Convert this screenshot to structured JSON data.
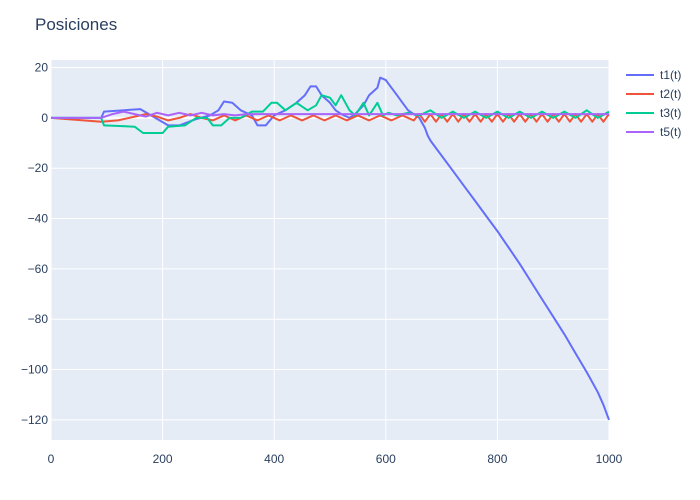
{
  "chart_data": {
    "type": "line",
    "title": "Posiciones",
    "xlabel": "",
    "ylabel": "",
    "xlim": [
      0,
      1000
    ],
    "ylim": [
      -128,
      23
    ],
    "x_ticks": [
      0,
      200,
      400,
      600,
      800,
      1000
    ],
    "x_tick_labels": [
      "0",
      "200",
      "400",
      "600",
      "800",
      "1000"
    ],
    "y_ticks": [
      20,
      0,
      -20,
      -40,
      -60,
      -80,
      -100,
      -120
    ],
    "y_tick_labels": [
      "20",
      "0",
      "−20",
      "−40",
      "−60",
      "−80",
      "−100",
      "−120"
    ],
    "grid": true,
    "legend_position": "top-right",
    "colors": {
      "plot_bg": "#e5ecf6",
      "grid": "#ffffff",
      "text": "#2a3f5f"
    },
    "series": [
      {
        "name": "t1(t)",
        "color": "#636efa",
        "x": [
          0,
          90,
          95,
          160,
          210,
          230,
          260,
          285,
          300,
          310,
          325,
          340,
          360,
          370,
          385,
          400,
          420,
          440,
          455,
          465,
          475,
          485,
          500,
          510,
          520,
          535,
          545,
          560,
          570,
          585,
          590,
          600,
          610,
          620,
          630,
          640,
          650,
          660,
          670,
          675,
          680,
          690,
          700,
          720,
          740,
          760,
          780,
          800,
          820,
          840,
          860,
          880,
          900,
          920,
          940,
          960,
          980,
          990,
          1000
        ],
        "y": [
          0,
          0,
          2.5,
          3.5,
          -3,
          -3,
          -0.5,
          1,
          3,
          6.5,
          6,
          3,
          1,
          -3,
          -3,
          1,
          3,
          6,
          9,
          12.5,
          12.5,
          9,
          6,
          3,
          1.5,
          0,
          1.5,
          5,
          9,
          12,
          16,
          15,
          12,
          9,
          6,
          3,
          1.5,
          0,
          -4,
          -7,
          -9,
          -12,
          -15,
          -21,
          -27,
          -33,
          -39,
          -45,
          -51.5,
          -58,
          -65,
          -72,
          -79,
          -86,
          -93.5,
          -101,
          -109,
          -114,
          -120
        ]
      },
      {
        "name": "t2(t)",
        "color": "#ef553b",
        "x": [
          0,
          90,
          120,
          150,
          170,
          190,
          210,
          230,
          250,
          270,
          290,
          310,
          330,
          350,
          370,
          390,
          410,
          430,
          450,
          470,
          490,
          510,
          530,
          550,
          570,
          590,
          610,
          630,
          650,
          660,
          670,
          680,
          690,
          700,
          710,
          720,
          730,
          740,
          750,
          760,
          770,
          780,
          790,
          800,
          810,
          820,
          830,
          840,
          850,
          860,
          870,
          880,
          890,
          900,
          910,
          920,
          930,
          940,
          950,
          960,
          970,
          980,
          990,
          1000
        ],
        "y": [
          0,
          -1.5,
          -1,
          0.5,
          1.5,
          0.5,
          -1,
          0,
          1.5,
          0,
          -1,
          1,
          -1,
          1,
          -1,
          1,
          -1,
          1,
          -1,
          1,
          -1,
          1,
          -1,
          1,
          -1,
          1,
          -1,
          1,
          -1,
          1.5,
          -1.5,
          1.5,
          -1.5,
          1.5,
          -1.5,
          1.5,
          -1.5,
          1.5,
          -1.5,
          1.5,
          -1.5,
          1.5,
          -1.5,
          1.5,
          -1.5,
          1.5,
          -1.5,
          1.5,
          -1.5,
          1.5,
          -1.5,
          1.5,
          -1.5,
          1.5,
          -1.5,
          1.5,
          -1.5,
          1.5,
          -1.5,
          1.5,
          -1.5,
          1.5,
          -1.5,
          1.5
        ]
      },
      {
        "name": "t3(t)",
        "color": "#00cc96",
        "x": [
          0,
          90,
          95,
          150,
          165,
          200,
          210,
          240,
          260,
          280,
          290,
          305,
          320,
          340,
          360,
          380,
          395,
          405,
          420,
          440,
          460,
          475,
          485,
          500,
          510,
          520,
          535,
          545,
          560,
          570,
          585,
          595,
          605,
          620,
          640,
          660,
          680,
          700,
          720,
          740,
          760,
          780,
          800,
          820,
          840,
          860,
          880,
          900,
          920,
          940,
          960,
          980,
          1000
        ],
        "y": [
          0,
          0,
          -3,
          -3.5,
          -6,
          -6,
          -3.5,
          -3,
          0,
          0,
          -3,
          -3,
          0,
          0,
          2.5,
          2.5,
          6,
          6,
          3,
          6,
          3,
          5,
          9,
          8,
          5,
          9,
          3,
          1,
          6,
          1,
          6,
          1,
          2,
          1,
          2,
          1,
          3,
          0,
          2.5,
          0,
          2.5,
          0,
          2.5,
          0,
          2.5,
          0,
          2.5,
          0,
          2.5,
          0,
          3,
          0,
          2.5
        ]
      },
      {
        "name": "t5(t)",
        "color": "#ab63fa",
        "x": [
          0,
          90,
          110,
          130,
          150,
          170,
          190,
          210,
          230,
          250,
          270,
          290,
          310,
          330,
          350,
          380,
          420,
          460,
          500,
          540,
          580,
          620,
          660,
          700,
          740,
          780,
          820,
          860,
          900,
          940,
          980,
          1000
        ],
        "y": [
          0,
          0,
          1.5,
          2.5,
          1.5,
          0.5,
          2,
          1,
          2,
          1,
          2,
          1,
          1.5,
          1,
          1.5,
          1.5,
          1.5,
          1.5,
          1.5,
          1.5,
          1.5,
          1.5,
          1.5,
          1.5,
          1.5,
          1.5,
          1.5,
          1.5,
          1.5,
          1.5,
          1.5,
          1.5
        ]
      }
    ]
  }
}
